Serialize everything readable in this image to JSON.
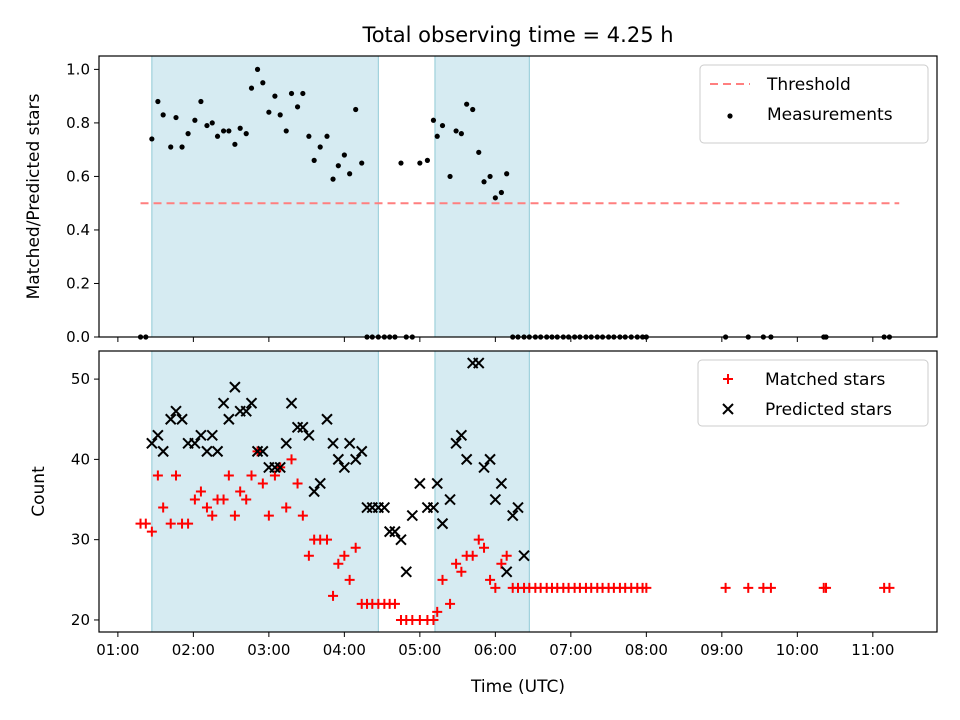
{
  "figure": {
    "title": "Total observing time = 4.25 h",
    "xlabel": "Time (UTC)",
    "shaded_intervals": [
      [
        1.45,
        4.45
      ],
      [
        5.2,
        6.45
      ]
    ],
    "shade_color": "#add8e6"
  },
  "chart_data": [
    {
      "type": "scatter",
      "ylabel": "Matched/Predicted stars",
      "xlim": [
        0.75,
        11.85
      ],
      "ylim": [
        0,
        1.05
      ],
      "x_ticks": [
        1,
        2,
        3,
        4,
        5,
        6,
        7,
        8,
        9,
        10,
        11
      ],
      "x_tick_labels": [
        "01:00",
        "02:00",
        "03:00",
        "04:00",
        "05:00",
        "06:00",
        "07:00",
        "08:00",
        "09:00",
        "10:00",
        "11:00"
      ],
      "y_ticks": [
        0.0,
        0.2,
        0.4,
        0.6,
        0.8,
        1.0
      ],
      "y_tick_labels": [
        "0.0",
        "0.2",
        "0.4",
        "0.6",
        "0.8",
        "1.0"
      ],
      "legend": {
        "position": "top-right",
        "entries": [
          "Threshold",
          "Measurements"
        ]
      },
      "threshold": {
        "name": "Threshold",
        "x": [
          1.3,
          11.35
        ],
        "y": 0.5,
        "color": "#ff7f7f"
      },
      "series": [
        {
          "name": "Measurements",
          "color": "#000000",
          "x": [
            1.3,
            1.37,
            1.45,
            1.53,
            1.6,
            1.7,
            1.77,
            1.85,
            1.93,
            2.02,
            2.1,
            2.18,
            2.25,
            2.32,
            2.4,
            2.47,
            2.55,
            2.62,
            2.7,
            2.77,
            2.85,
            2.92,
            3.0,
            3.08,
            3.15,
            3.23,
            3.3,
            3.38,
            3.45,
            3.53,
            3.6,
            3.68,
            3.77,
            3.85,
            3.92,
            4.0,
            4.07,
            4.15,
            4.23,
            4.3,
            4.37,
            4.45,
            4.53,
            4.6,
            4.67,
            4.75,
            4.82,
            4.9,
            5.0,
            5.1,
            5.18,
            5.23,
            5.3,
            5.4,
            5.48,
            5.55,
            5.62,
            5.7,
            5.78,
            5.85,
            5.93,
            6.0,
            6.08,
            6.15,
            6.23,
            6.3,
            6.38,
            6.45,
            6.53,
            6.6,
            6.68,
            6.75,
            6.82,
            6.9,
            6.97,
            7.05,
            7.12,
            7.2,
            7.27,
            7.35,
            7.42,
            7.5,
            7.57,
            7.65,
            7.72,
            7.8,
            7.88,
            7.95,
            8.0,
            9.05,
            9.35,
            9.55,
            9.65,
            10.35,
            10.38,
            11.15,
            11.22
          ],
          "y": [
            0.0,
            0.0,
            0.74,
            0.88,
            0.83,
            0.71,
            0.82,
            0.71,
            0.76,
            0.81,
            0.88,
            0.79,
            0.8,
            0.75,
            0.77,
            0.77,
            0.72,
            0.78,
            0.76,
            0.93,
            1.0,
            0.95,
            0.84,
            0.9,
            0.83,
            0.77,
            0.91,
            0.86,
            0.91,
            0.75,
            0.66,
            0.71,
            0.75,
            0.59,
            0.64,
            0.68,
            0.61,
            0.85,
            0.65,
            0.0,
            0.0,
            0.0,
            0.0,
            0.0,
            0.0,
            0.65,
            0.0,
            0.0,
            0.65,
            0.66,
            0.81,
            0.75,
            0.79,
            0.6,
            0.77,
            0.76,
            0.87,
            0.85,
            0.69,
            0.58,
            0.6,
            0.52,
            0.54,
            0.61,
            0.0,
            0.0,
            0.0,
            0.0,
            0.0,
            0.0,
            0.0,
            0.0,
            0.0,
            0.0,
            0.0,
            0.0,
            0.0,
            0.0,
            0.0,
            0.0,
            0.0,
            0.0,
            0.0,
            0.0,
            0.0,
            0.0,
            0.0,
            0.0,
            0.0,
            0.0,
            0.0,
            0.0,
            0.0,
            0.0,
            0.0,
            0.0,
            0.0
          ]
        }
      ]
    },
    {
      "type": "scatter",
      "ylabel": "Count",
      "xlim": [
        0.75,
        11.85
      ],
      "ylim": [
        18.5,
        53.5
      ],
      "x_ticks": [
        1,
        2,
        3,
        4,
        5,
        6,
        7,
        8,
        9,
        10,
        11
      ],
      "x_tick_labels": [
        "01:00",
        "02:00",
        "03:00",
        "04:00",
        "05:00",
        "06:00",
        "07:00",
        "08:00",
        "09:00",
        "10:00",
        "11:00"
      ],
      "y_ticks": [
        20,
        30,
        40,
        50
      ],
      "y_tick_labels": [
        "20",
        "30",
        "40",
        "50"
      ],
      "legend": {
        "position": "top-right",
        "entries": [
          "Matched stars",
          "Predicted stars"
        ]
      },
      "series": [
        {
          "name": "Matched stars",
          "marker": "plus",
          "color": "#ff0000",
          "x": [
            1.3,
            1.37,
            1.45,
            1.53,
            1.6,
            1.7,
            1.77,
            1.85,
            1.93,
            2.02,
            2.1,
            2.18,
            2.25,
            2.32,
            2.4,
            2.47,
            2.55,
            2.62,
            2.7,
            2.77,
            2.85,
            2.92,
            3.0,
            3.08,
            3.15,
            3.23,
            3.3,
            3.38,
            3.45,
            3.53,
            3.6,
            3.68,
            3.77,
            3.85,
            3.92,
            4.0,
            4.07,
            4.15,
            4.23,
            4.3,
            4.37,
            4.45,
            4.53,
            4.6,
            4.67,
            4.75,
            4.82,
            4.9,
            5.0,
            5.1,
            5.18,
            5.23,
            5.3,
            5.4,
            5.48,
            5.55,
            5.62,
            5.7,
            5.78,
            5.85,
            5.93,
            6.0,
            6.08,
            6.15,
            6.23,
            6.3,
            6.38,
            6.45,
            6.53,
            6.6,
            6.68,
            6.75,
            6.82,
            6.9,
            6.97,
            7.05,
            7.12,
            7.2,
            7.27,
            7.35,
            7.42,
            7.5,
            7.57,
            7.65,
            7.72,
            7.8,
            7.88,
            7.95,
            8.0,
            9.05,
            9.35,
            9.55,
            9.65,
            10.35,
            10.38,
            11.15,
            11.22
          ],
          "y": [
            32,
            32,
            31,
            38,
            34,
            32,
            38,
            32,
            32,
            35,
            36,
            34,
            33,
            35,
            35,
            38,
            33,
            36,
            35,
            38,
            41,
            37,
            33,
            38,
            39,
            34,
            40,
            37,
            33,
            28,
            30,
            30,
            30,
            23,
            27,
            28,
            25,
            29,
            22,
            22,
            22,
            22,
            22,
            22,
            22,
            20,
            20,
            20,
            20,
            20,
            20,
            21,
            25,
            22,
            27,
            26,
            28,
            28,
            30,
            29,
            25,
            24,
            27,
            28,
            24,
            24,
            24,
            24,
            24,
            24,
            24,
            24,
            24,
            24,
            24,
            24,
            24,
            24,
            24,
            24,
            24,
            24,
            24,
            24,
            24,
            24,
            24,
            24,
            24,
            24,
            24,
            24,
            24,
            24,
            24,
            24,
            24
          ]
        },
        {
          "name": "Predicted stars",
          "marker": "x",
          "color": "#000000",
          "x": [
            1.45,
            1.53,
            1.6,
            1.7,
            1.77,
            1.85,
            1.93,
            2.02,
            2.1,
            2.18,
            2.25,
            2.32,
            2.4,
            2.47,
            2.55,
            2.62,
            2.7,
            2.77,
            2.85,
            2.92,
            3.0,
            3.08,
            3.15,
            3.23,
            3.3,
            3.38,
            3.45,
            3.53,
            3.6,
            3.68,
            3.77,
            3.85,
            3.92,
            4.0,
            4.07,
            4.15,
            4.23,
            4.3,
            4.37,
            4.45,
            4.53,
            4.6,
            4.67,
            4.75,
            4.82,
            4.9,
            5.0,
            5.1,
            5.18,
            5.23,
            5.3,
            5.4,
            5.48,
            5.55,
            5.62,
            5.7,
            5.78,
            5.85,
            5.93,
            6.0,
            6.08,
            6.15,
            6.23,
            6.3,
            6.38
          ],
          "y": [
            42,
            43,
            41,
            45,
            46,
            45,
            42,
            42,
            43,
            41,
            43,
            41,
            47,
            45,
            49,
            46,
            46,
            47,
            41,
            41,
            39,
            39,
            39,
            42,
            47,
            44,
            44,
            43,
            36,
            37,
            45,
            42,
            40,
            39,
            42,
            40,
            41,
            34,
            34,
            34,
            34,
            31,
            31,
            30,
            26,
            33,
            37,
            34,
            34,
            37,
            32,
            35,
            42,
            43,
            40,
            52,
            52,
            39,
            40,
            35,
            37,
            26,
            33,
            34,
            28
          ]
        }
      ]
    }
  ]
}
